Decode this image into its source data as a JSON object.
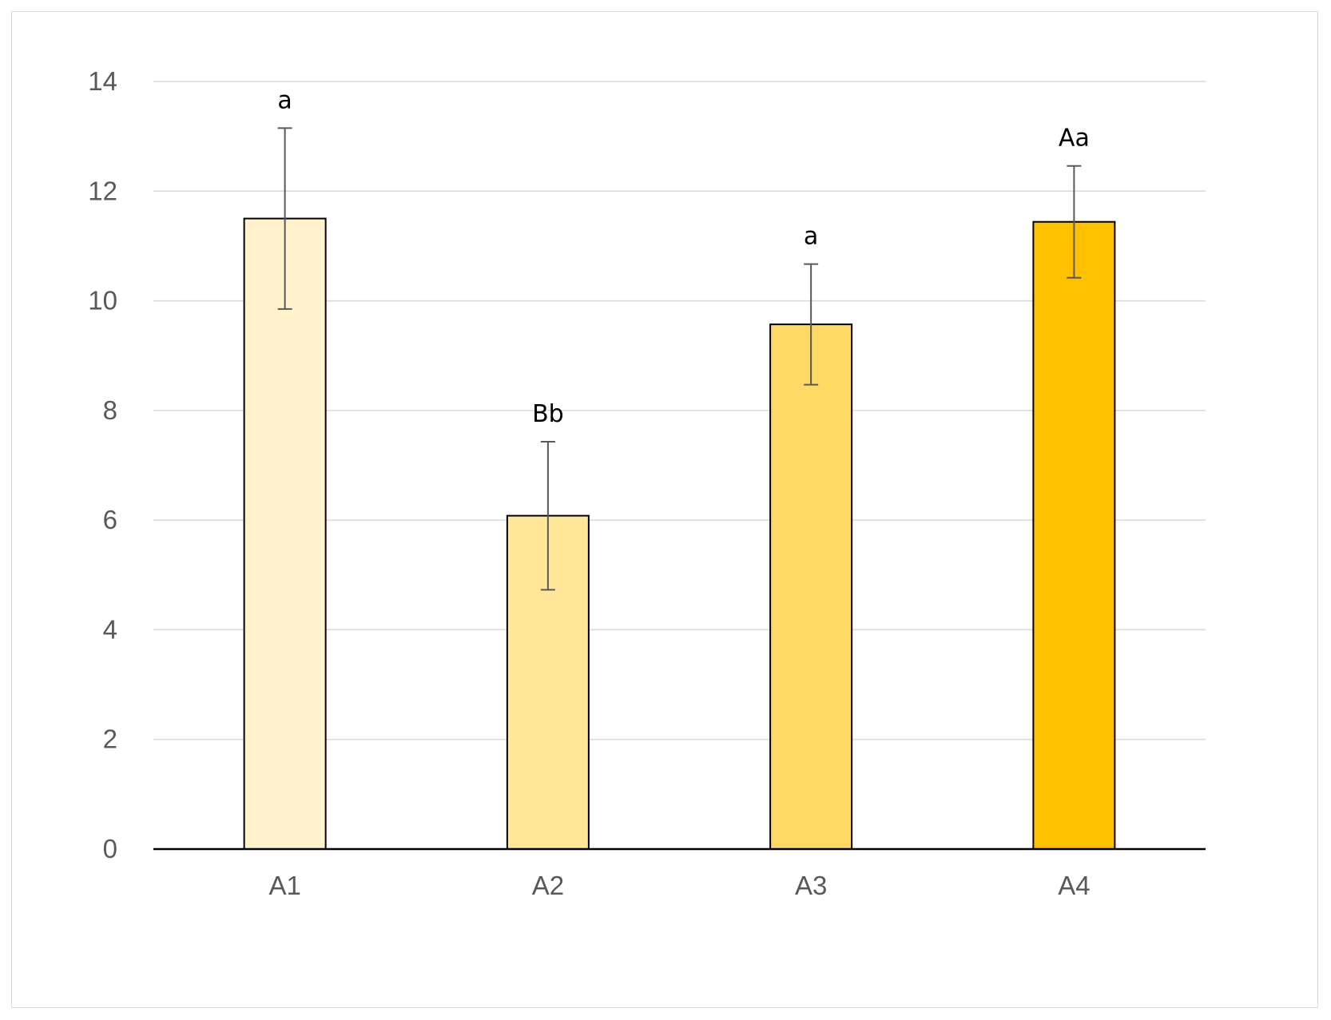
{
  "chart_data": {
    "type": "bar",
    "categories": [
      "A1",
      "A2",
      "A3",
      "A4"
    ],
    "values": [
      11.5,
      6.08,
      9.57,
      11.44
    ],
    "error_bars": [
      1.65,
      1.35,
      1.1,
      1.02
    ],
    "data_labels": [
      "a",
      "Bb",
      "a",
      "Aa"
    ],
    "colors": [
      "#fff2cc",
      "#ffe699",
      "#ffd966",
      "#ffc000"
    ],
    "ylim": [
      0,
      14
    ],
    "yticks": [
      0,
      2,
      4,
      6,
      8,
      10,
      12,
      14
    ],
    "grid": true,
    "legend": "none"
  }
}
